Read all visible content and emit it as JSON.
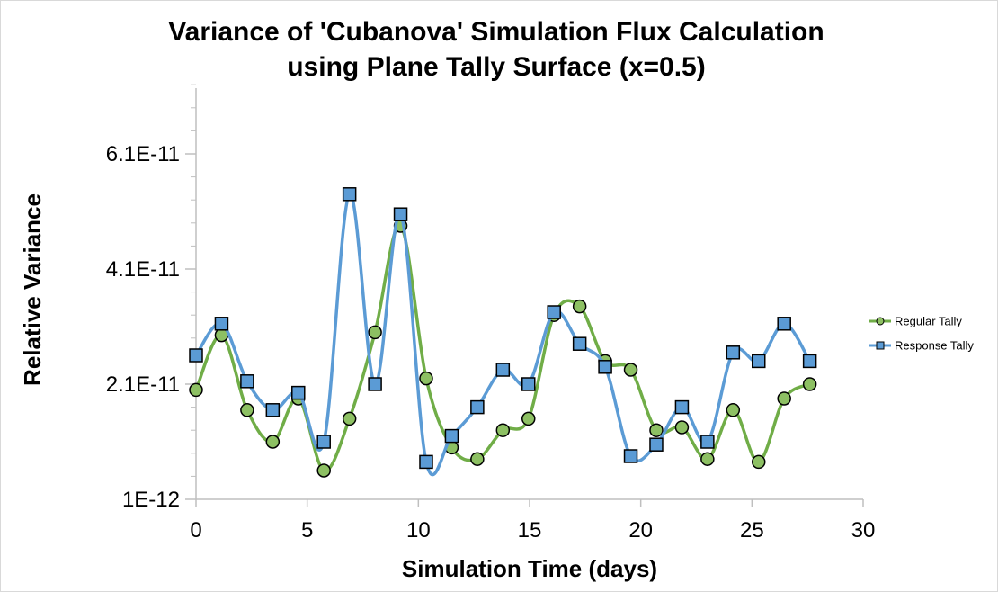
{
  "chart_data": {
    "type": "line",
    "title": [
      "Variance of 'Cubanova' Simulation Flux Calculation",
      "using Plane Tally Surface (x=0.5)"
    ],
    "xlabel": "Simulation Time (days)",
    "ylabel": "Relative Variance",
    "xlim": [
      0,
      30
    ],
    "ylim": [
      1e-12,
      7.6e-11
    ],
    "x_ticks": [
      0,
      5,
      10,
      15,
      20,
      25,
      30
    ],
    "y_ticks": [
      1e-12,
      2.1e-11,
      4.1e-11,
      6.1e-11
    ],
    "y_tick_labels": [
      "1E-12",
      "2.1E-11",
      "4.1E-11",
      "6.1E-11"
    ],
    "grid": false,
    "smoothed": true,
    "legend_position": "right",
    "series": [
      {
        "name": "Regular Tally",
        "color": "#70AD47",
        "marker_fill": "#8DC063",
        "marker": "circle",
        "points": [
          [
            0,
            2e-11
          ],
          [
            1.15,
            2.95e-11
          ],
          [
            2.3,
            1.65e-11
          ],
          [
            3.45,
            1.1e-11
          ],
          [
            4.6,
            1.85e-11
          ],
          [
            5.75,
            6e-12
          ],
          [
            6.9,
            1.5e-11
          ],
          [
            8.05,
            3e-11
          ],
          [
            9.2,
            4.85e-11
          ],
          [
            10.35,
            2.2e-11
          ],
          [
            11.5,
            1e-11
          ],
          [
            12.65,
            8e-12
          ],
          [
            13.8,
            1.3e-11
          ],
          [
            14.95,
            1.5e-11
          ],
          [
            16.1,
            3.3e-11
          ],
          [
            17.25,
            3.45e-11
          ],
          [
            18.4,
            2.5e-11
          ],
          [
            19.55,
            2.35e-11
          ],
          [
            20.7,
            1.3e-11
          ],
          [
            21.85,
            1.35e-11
          ],
          [
            23.0,
            8e-12
          ],
          [
            24.15,
            1.65e-11
          ],
          [
            25.3,
            7.5e-12
          ],
          [
            26.45,
            1.85e-11
          ],
          [
            27.6,
            2.1e-11
          ]
        ]
      },
      {
        "name": "Response Tally",
        "color": "#5B9BD5",
        "marker_fill": "#5B9BD5",
        "marker": "square",
        "points": [
          [
            0,
            2.6e-11
          ],
          [
            1.15,
            3.15e-11
          ],
          [
            2.3,
            2.15e-11
          ],
          [
            3.45,
            1.65e-11
          ],
          [
            4.6,
            1.95e-11
          ],
          [
            5.75,
            1.1e-11
          ],
          [
            6.9,
            5.4e-11
          ],
          [
            8.05,
            2.1e-11
          ],
          [
            9.2,
            5.05e-11
          ],
          [
            10.35,
            7.5e-12
          ],
          [
            11.5,
            1.2e-11
          ],
          [
            12.65,
            1.7e-11
          ],
          [
            13.8,
            2.35e-11
          ],
          [
            14.95,
            2.1e-11
          ],
          [
            16.1,
            3.35e-11
          ],
          [
            17.25,
            2.8e-11
          ],
          [
            18.4,
            2.4e-11
          ],
          [
            19.55,
            8.5e-12
          ],
          [
            20.7,
            1.05e-11
          ],
          [
            21.85,
            1.7e-11
          ],
          [
            23.0,
            1.1e-11
          ],
          [
            24.15,
            2.65e-11
          ],
          [
            25.3,
            2.5e-11
          ],
          [
            26.45,
            3.15e-11
          ],
          [
            27.6,
            2.5e-11
          ]
        ]
      }
    ]
  }
}
